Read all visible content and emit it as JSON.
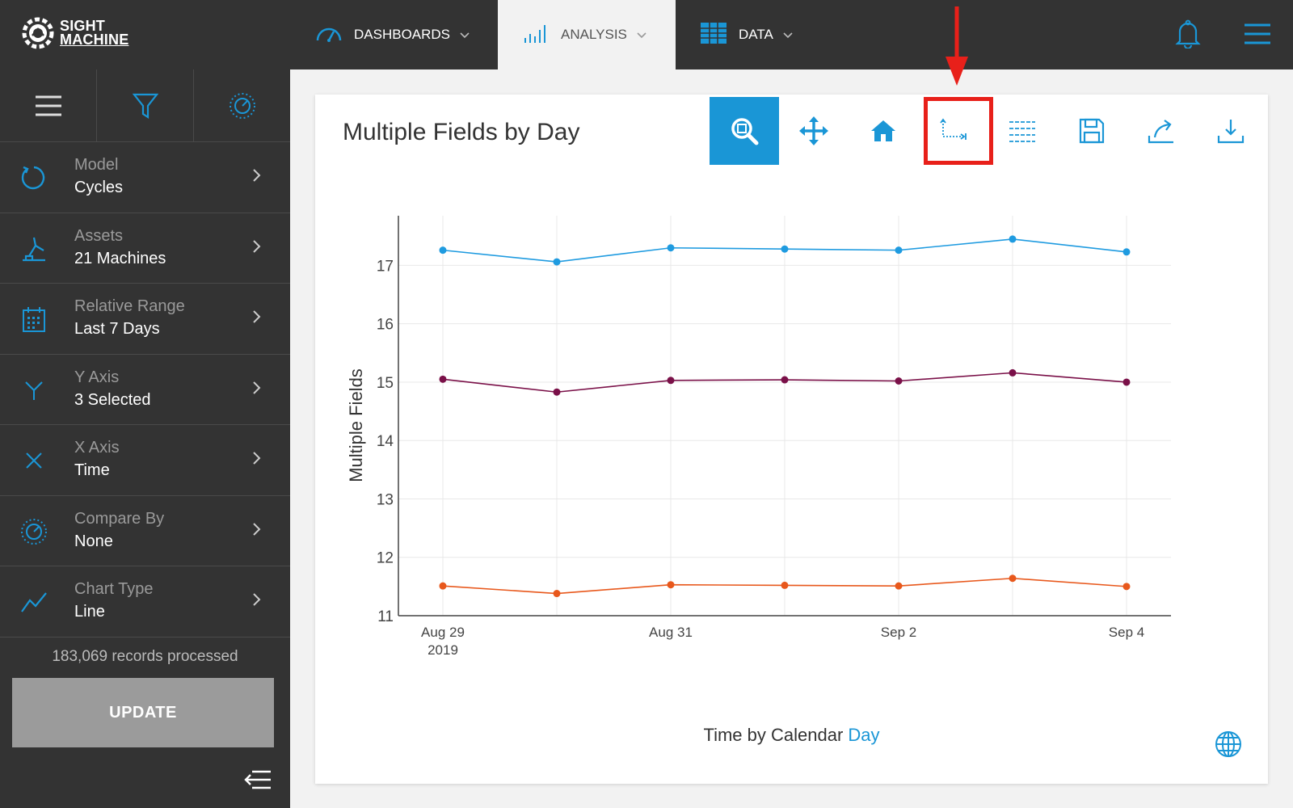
{
  "header": {
    "logo_line1": "SIGHT",
    "logo_line2": "MACHINE",
    "tabs": [
      {
        "label": "DASHBOARDS",
        "icon": "gauge-icon"
      },
      {
        "label": "ANALYSIS",
        "icon": "bar-chart-icon",
        "active": true
      },
      {
        "label": "DATA",
        "icon": "table-icon"
      }
    ]
  },
  "sidebar": {
    "items": [
      {
        "label": "Model",
        "value": "Cycles",
        "icon": "refresh-icon"
      },
      {
        "label": "Assets",
        "value": "21 Machines",
        "icon": "robot-arm-icon"
      },
      {
        "label": "Relative Range",
        "value": "Last 7 Days",
        "icon": "calendar-icon"
      },
      {
        "label": "Y Axis",
        "value": "3 Selected",
        "icon": "y-axis-icon"
      },
      {
        "label": "X Axis",
        "value": "Time",
        "icon": "x-axis-icon"
      },
      {
        "label": "Compare By",
        "value": "None",
        "icon": "compare-icon"
      },
      {
        "label": "Chart Type",
        "value": "Line",
        "icon": "line-chart-icon"
      }
    ],
    "records": "183,069 records processed",
    "update_label": "UPDATE"
  },
  "panel": {
    "title": "Multiple Fields by Day",
    "toolbar": [
      "zoom-icon",
      "pan-icon",
      "home-icon",
      "axis-reset-icon",
      "table-view-icon",
      "save-icon",
      "share-icon",
      "download-icon"
    ],
    "xaxis_prefix": "Time by Calendar",
    "xaxis_link": "Day"
  },
  "colors": {
    "accent": "#1a96d6",
    "series_blue": "#1f9be0",
    "series_purple": "#7a1048",
    "series_orange": "#e8581c",
    "highlight": "#e8201a"
  },
  "chart_data": {
    "type": "line",
    "title": "Multiple Fields by Day",
    "ylabel": "Multiple Fields",
    "xlabel": "Time by Calendar Day",
    "x": [
      "2019-08-29",
      "2019-08-30",
      "2019-08-31",
      "2019-09-01",
      "2019-09-02",
      "2019-09-03",
      "2019-09-04"
    ],
    "x_ticks": [
      {
        "index": 0,
        "label": "Aug 29",
        "sublabel": "2019"
      },
      {
        "index": 2,
        "label": "Aug 31",
        "sublabel": ""
      },
      {
        "index": 4,
        "label": "Sep 2",
        "sublabel": ""
      },
      {
        "index": 6,
        "label": "Sep 4",
        "sublabel": ""
      }
    ],
    "y_ticks": [
      11,
      12,
      13,
      14,
      15,
      16,
      17
    ],
    "ylim": [
      11,
      17.85
    ],
    "grid": true,
    "series": [
      {
        "color": "#1f9be0",
        "values": [
          17.26,
          17.06,
          17.3,
          17.28,
          17.26,
          17.45,
          17.23
        ]
      },
      {
        "color": "#7a1048",
        "values": [
          15.05,
          14.83,
          15.03,
          15.04,
          15.02,
          15.16,
          15.0
        ]
      },
      {
        "color": "#e8581c",
        "values": [
          11.51,
          11.38,
          11.53,
          11.52,
          11.51,
          11.64,
          11.5
        ]
      }
    ]
  }
}
